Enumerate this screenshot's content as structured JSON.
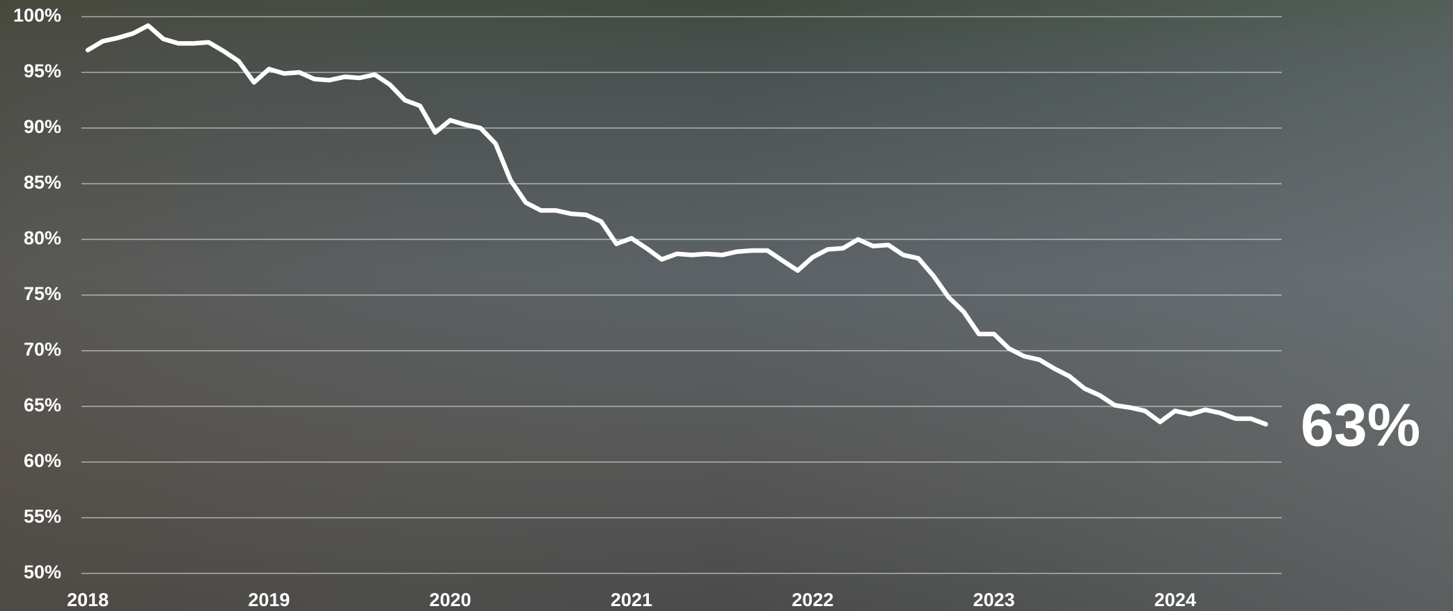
{
  "chart_data": {
    "type": "line",
    "x": [
      2018,
      2018.083,
      2018.167,
      2018.25,
      2018.333,
      2018.417,
      2018.5,
      2018.583,
      2018.667,
      2018.75,
      2018.833,
      2018.917,
      2019,
      2019.083,
      2019.167,
      2019.25,
      2019.333,
      2019.417,
      2019.5,
      2019.583,
      2019.667,
      2019.75,
      2019.833,
      2019.917,
      2020,
      2020.083,
      2020.167,
      2020.25,
      2020.333,
      2020.417,
      2020.5,
      2020.583,
      2020.667,
      2020.75,
      2020.833,
      2020.917,
      2021,
      2021.083,
      2021.167,
      2021.25,
      2021.333,
      2021.417,
      2021.5,
      2021.583,
      2021.667,
      2021.75,
      2021.833,
      2021.917,
      2022,
      2022.083,
      2022.167,
      2022.25,
      2022.333,
      2022.417,
      2022.5,
      2022.583,
      2022.667,
      2022.75,
      2022.833,
      2022.917,
      2023,
      2023.083,
      2023.167,
      2023.25,
      2023.333,
      2023.417,
      2023.5,
      2023.583,
      2023.667,
      2023.75,
      2023.833,
      2023.917,
      2024,
      2024.083,
      2024.167,
      2024.25,
      2024.333,
      2024.417,
      2024.5
    ],
    "values": [
      97.0,
      97.8,
      98.1,
      98.5,
      99.2,
      98.0,
      97.6,
      97.6,
      97.7,
      96.9,
      96.0,
      94.1,
      95.3,
      94.9,
      95.0,
      94.4,
      94.3,
      94.6,
      94.5,
      94.8,
      93.9,
      92.5,
      92.0,
      89.6,
      90.7,
      90.3,
      90.0,
      88.6,
      85.3,
      83.3,
      82.6,
      82.6,
      82.3,
      82.2,
      81.6,
      79.6,
      80.1,
      79.2,
      78.2,
      78.7,
      78.6,
      78.7,
      78.6,
      78.9,
      79.0,
      79.0,
      78.1,
      77.2,
      78.4,
      79.1,
      79.2,
      80.0,
      79.4,
      79.5,
      78.6,
      78.3,
      76.7,
      74.8,
      73.5,
      71.5,
      71.5,
      70.2,
      69.5,
      69.2,
      68.4,
      67.7,
      66.6,
      66.0,
      65.1,
      64.9,
      64.6,
      63.6,
      64.6,
      64.3,
      64.7,
      64.4,
      63.9,
      63.9,
      63.4
    ],
    "value_labels": [
      null,
      null,
      null,
      null,
      null,
      null,
      null,
      null,
      null,
      null,
      null,
      null,
      null,
      null,
      null,
      null,
      null,
      null,
      null,
      null,
      null,
      null,
      null,
      null,
      null,
      null,
      null,
      null,
      null,
      null,
      null,
      null,
      null,
      null,
      null,
      null,
      null,
      null,
      null,
      null,
      null,
      null,
      null,
      null,
      null,
      null,
      null,
      null,
      null,
      null,
      null,
      null,
      null,
      null,
      null,
      null,
      null,
      null,
      null,
      null,
      null,
      null,
      null,
      null,
      null,
      null,
      null,
      null,
      null,
      null,
      null,
      null,
      null,
      null,
      null,
      null,
      null,
      null,
      "63%"
    ],
    "color": "#ffffff",
    "xlim": [
      2017.965,
      2024.588
    ],
    "xticks": [
      2018,
      2019,
      2020,
      2021,
      2022,
      2023,
      2024
    ],
    "ylim": [
      50,
      100
    ],
    "yticks": [
      {
        "value": 50,
        "label": "50%"
      },
      {
        "value": 55,
        "label": "55%"
      },
      {
        "value": 60,
        "label": "60%"
      },
      {
        "value": 65,
        "label": "65%"
      },
      {
        "value": 70,
        "label": "70%"
      },
      {
        "value": 75,
        "label": "75%"
      },
      {
        "value": 80,
        "label": "80%"
      },
      {
        "value": 85,
        "label": "85%"
      },
      {
        "value": 90,
        "label": "90%"
      },
      {
        "value": 95,
        "label": "95%"
      },
      {
        "value": 100,
        "label": "100%"
      }
    ],
    "grid": true
  }
}
